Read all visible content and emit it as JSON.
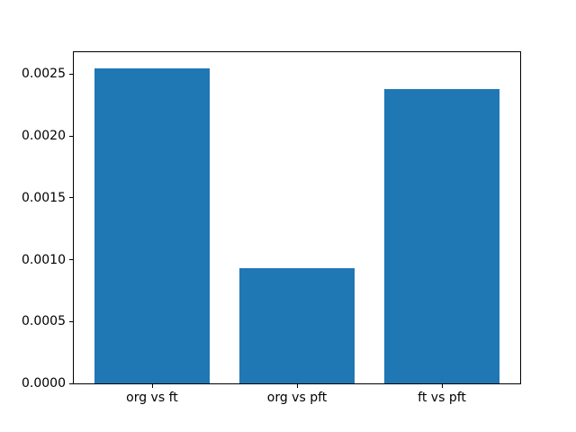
{
  "chart_data": {
    "type": "bar",
    "categories": [
      "org vs ft",
      "org vs pft",
      "ft vs pft"
    ],
    "values": [
      0.00255,
      0.00093,
      0.00238
    ],
    "title": "",
    "xlabel": "",
    "ylabel": "",
    "ylim": [
      0,
      0.002678
    ],
    "xlim": [
      -0.54,
      2.54
    ],
    "bar_width": 0.8,
    "yticks": [
      0.0,
      0.0005,
      0.001,
      0.0015,
      0.002,
      0.0025
    ],
    "ytick_labels": [
      "0.0000",
      "0.0005",
      "0.0010",
      "0.0015",
      "0.0020",
      "0.0025"
    ],
    "grid": false,
    "legend": "none",
    "colors": {
      "bar": "#1f77b4",
      "spine": "#000000",
      "background": "#ffffff",
      "text": "#000000"
    }
  }
}
